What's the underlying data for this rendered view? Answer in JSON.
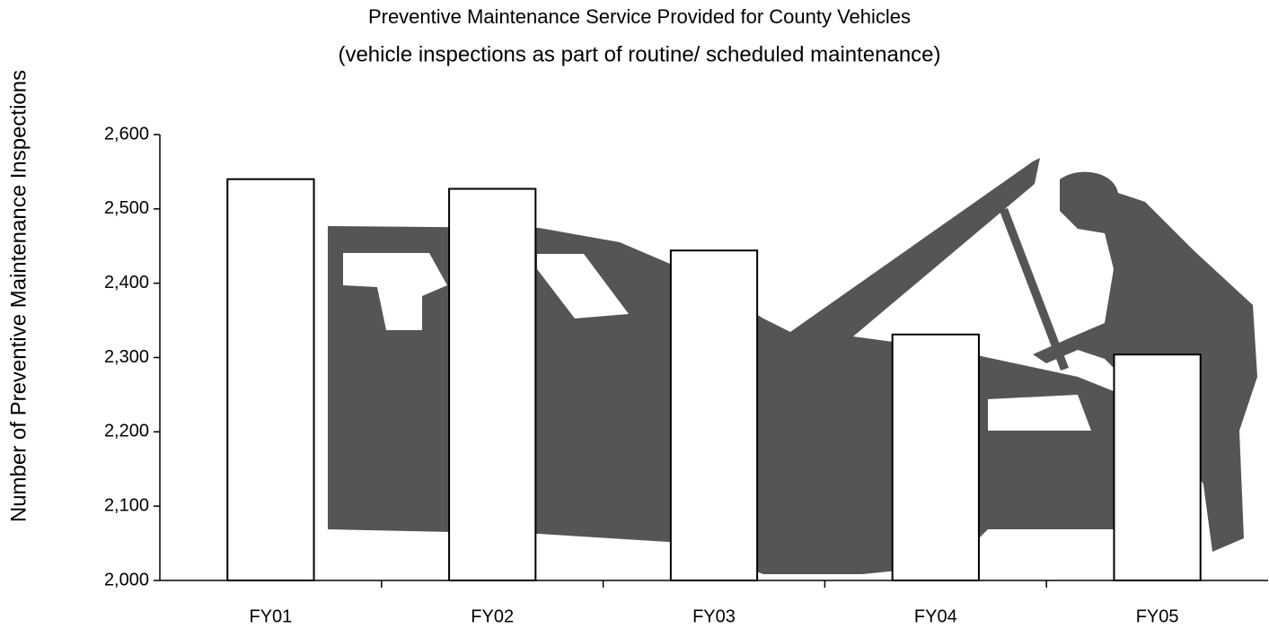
{
  "chart_data": {
    "type": "bar",
    "title": "Preventive Maintenance Service Provided for County Vehicles",
    "subtitle": "(vehicle inspections as part of routine/ scheduled maintenance)",
    "y_label": "Number of Preventive Maintenance Inspections",
    "categories": [
      "FY01",
      "FY02",
      "FY03",
      "FY04",
      "FY05"
    ],
    "values": [
      2540,
      2527,
      2444,
      2331,
      2304
    ],
    "color": "#ffffff",
    "ylim": [
      2000,
      2600
    ],
    "yticks": [
      {
        "value": 2000,
        "label": "2,000"
      },
      {
        "value": 2100,
        "label": "2,100"
      },
      {
        "value": 2200,
        "label": "2,200"
      },
      {
        "value": 2300,
        "label": "2,300"
      },
      {
        "value": 2400,
        "label": "2,400"
      },
      {
        "value": 2500,
        "label": "2,500"
      },
      {
        "value": 2600,
        "label": "2,600"
      }
    ],
    "grid": false
  }
}
